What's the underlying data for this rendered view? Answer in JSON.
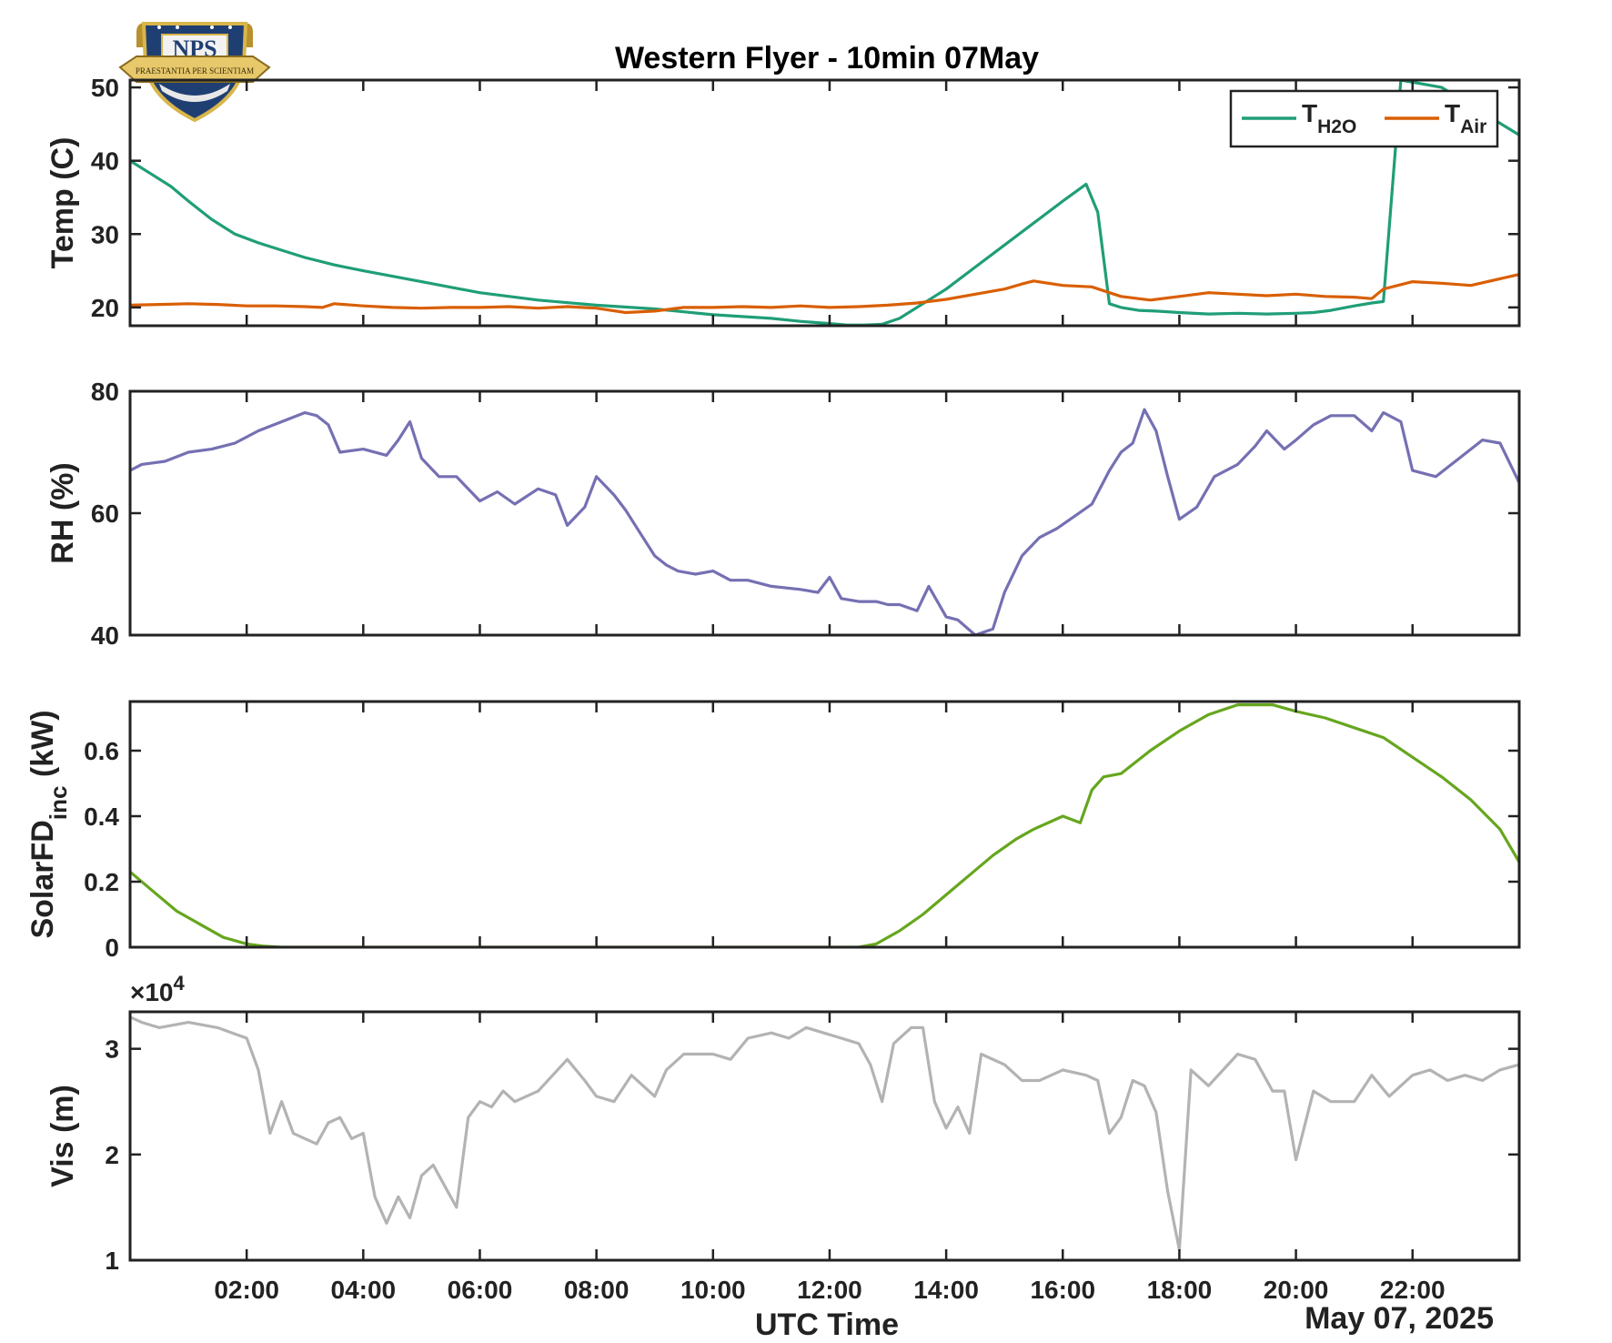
{
  "logo": {
    "text": "NPS",
    "motto": "PRAESTANTIA PER SCIENTIAM",
    "colors": {
      "shield": "#1f3f73",
      "gold": "#d8b64a"
    }
  },
  "chart_data": {
    "title": "Western Flyer - 10min 07May",
    "xlabel": "UTC Time",
    "date_label": "May 07, 2025",
    "x_range_hours": [
      0,
      23.83
    ],
    "xtick_hours": [
      2,
      4,
      6,
      8,
      10,
      12,
      14,
      16,
      18,
      20,
      22
    ],
    "xtick_labels": [
      "02:00",
      "04:00",
      "06:00",
      "08:00",
      "10:00",
      "12:00",
      "14:00",
      "16:00",
      "18:00",
      "20:00",
      "22:00"
    ],
    "panels": [
      {
        "type": "line",
        "ylabel": "Temp (C)",
        "ylim": [
          17.5,
          51
        ],
        "yticks": [
          20,
          30,
          40,
          50
        ],
        "legend": {
          "position": "top-right",
          "entries": [
            {
              "main": "T",
              "sub": "H2O"
            },
            {
              "main": "T",
              "sub": "Air"
            }
          ]
        },
        "series": [
          {
            "name": "TH2O",
            "color": "#1f9e77",
            "x": [
              0,
              0.3,
              0.7,
              1,
              1.4,
              1.8,
              2.2,
              2.6,
              3,
              3.5,
              4,
              5,
              6,
              7,
              8,
              9,
              10,
              11,
              11.5,
              12,
              12.3,
              12.6,
              12.9,
              13.2,
              13.6,
              14,
              14.5,
              15,
              15.5,
              16,
              16.4,
              16.6,
              16.8,
              17,
              17.3,
              17.6,
              18,
              18.5,
              19,
              19.5,
              20,
              20.3,
              20.6,
              21,
              21.3,
              21.5,
              21.8,
              22.5,
              23.83
            ],
            "values": [
              40,
              38.5,
              36.5,
              34.5,
              32,
              30,
              28.8,
              27.8,
              26.8,
              25.8,
              25,
              23.5,
              22,
              21,
              20.3,
              19.8,
              19,
              18.5,
              18.1,
              17.8,
              17.6,
              17.6,
              17.7,
              18.5,
              20.5,
              22.5,
              25.5,
              28.5,
              31.5,
              34.5,
              36.8,
              33,
              20.5,
              20,
              19.6,
              19.5,
              19.3,
              19.1,
              19.2,
              19.1,
              19.2,
              19.3,
              19.6,
              20.2,
              20.6,
              20.8,
              51,
              50,
              43.5
            ]
          },
          {
            "name": "TAir",
            "color": "#d95f02",
            "x": [
              0,
              0.5,
              1,
              1.5,
              2,
              2.5,
              3,
              3.3,
              3.5,
              4,
              4.5,
              5,
              5.5,
              6,
              6.5,
              7,
              7.5,
              8,
              8.5,
              9,
              9.5,
              10,
              10.5,
              11,
              11.5,
              12,
              12.5,
              13,
              13.5,
              14,
              14.5,
              15,
              15.3,
              15.5,
              16,
              16.5,
              17,
              17.5,
              18,
              18.5,
              19,
              19.5,
              20,
              20.5,
              21,
              21.3,
              21.5,
              22,
              22.5,
              23,
              23.83
            ],
            "values": [
              20.3,
              20.4,
              20.5,
              20.4,
              20.2,
              20.2,
              20.1,
              20,
              20.5,
              20.2,
              20,
              19.9,
              20,
              20,
              20.1,
              19.9,
              20.1,
              19.9,
              19.3,
              19.5,
              20,
              20,
              20.1,
              20,
              20.2,
              20,
              20.1,
              20.3,
              20.6,
              21.1,
              21.8,
              22.5,
              23.2,
              23.6,
              23,
              22.8,
              21.5,
              21,
              21.5,
              22,
              21.8,
              21.6,
              21.8,
              21.5,
              21.4,
              21.2,
              22.5,
              23.5,
              23.3,
              23,
              24.5
            ]
          }
        ]
      },
      {
        "type": "line",
        "ylabel": "RH (%)",
        "ylim": [
          40,
          80
        ],
        "yticks": [
          40,
          60,
          80
        ],
        "series": [
          {
            "name": "",
            "color": "#7570b3",
            "x": [
              0,
              0.2,
              0.6,
              1,
              1.4,
              1.8,
              2.2,
              2.6,
              3,
              3.2,
              3.4,
              3.6,
              4,
              4.4,
              4.6,
              4.8,
              5,
              5.3,
              5.6,
              6,
              6.3,
              6.6,
              7,
              7.3,
              7.5,
              7.8,
              8,
              8.3,
              8.5,
              8.7,
              9,
              9.2,
              9.4,
              9.7,
              10,
              10.3,
              10.6,
              11,
              11.5,
              11.8,
              12,
              12.2,
              12.5,
              12.8,
              13,
              13.2,
              13.5,
              13.7,
              14,
              14.2,
              14.5,
              14.8,
              15,
              15.3,
              15.6,
              15.9,
              16.2,
              16.5,
              16.8,
              17,
              17.2,
              17.4,
              17.6,
              17.8,
              18,
              18.3,
              18.6,
              19,
              19.3,
              19.5,
              19.8,
              20,
              20.3,
              20.6,
              21,
              21.3,
              21.5,
              21.8,
              22,
              22.4,
              22.8,
              23.2,
              23.5,
              23.83
            ],
            "values": [
              67,
              68,
              68.5,
              70,
              70.5,
              71.5,
              73.5,
              75,
              76.5,
              76,
              74.5,
              70,
              70.5,
              69.5,
              72,
              75,
              69,
              66,
              66,
              62,
              63.5,
              61.5,
              64,
              63,
              58,
              61,
              66,
              63,
              60.5,
              57.5,
              53,
              51.5,
              50.5,
              50,
              50.5,
              49,
              49,
              48,
              47.5,
              47,
              49.5,
              46,
              45.5,
              45.5,
              45,
              45,
              44,
              48,
              43,
              42.5,
              40,
              41,
              47,
              53,
              56,
              57.5,
              59.5,
              61.5,
              67,
              70,
              71.5,
              77,
              73.5,
              66,
              59,
              61,
              66,
              68,
              71,
              73.5,
              70.5,
              72,
              74.5,
              76,
              76,
              73.5,
              76.5,
              75,
              67,
              66,
              69,
              72,
              71.5,
              65
            ]
          }
        ]
      },
      {
        "type": "line",
        "ylabel": "SolarFD",
        "ylabel_sub": "inc",
        "ylabel_unit": " (kW)",
        "ylim": [
          0,
          0.75
        ],
        "yticks": [
          0,
          0.2,
          0.4,
          0.6
        ],
        "ytick_labels": [
          "0",
          "0.2",
          "0.4",
          "0.6"
        ],
        "series": [
          {
            "name": "",
            "color": "#66a61e",
            "x": [
              0,
              0.4,
              0.8,
              1.2,
              1.6,
              2,
              2.3,
              2.6,
              12.5,
              12.8,
              13.2,
              13.6,
              14,
              14.4,
              14.8,
              15.2,
              15.5,
              16,
              16.3,
              16.5,
              16.7,
              17,
              17.5,
              18,
              18.5,
              19,
              19.3,
              19.6,
              20,
              20.5,
              21,
              21.5,
              22,
              22.5,
              23,
              23.5,
              23.83
            ],
            "values": [
              0.23,
              0.17,
              0.11,
              0.07,
              0.03,
              0.01,
              0.003,
              0,
              0,
              0.01,
              0.05,
              0.1,
              0.16,
              0.22,
              0.28,
              0.33,
              0.36,
              0.4,
              0.38,
              0.48,
              0.52,
              0.53,
              0.6,
              0.66,
              0.71,
              0.74,
              0.74,
              0.74,
              0.72,
              0.7,
              0.67,
              0.64,
              0.58,
              0.52,
              0.45,
              0.36,
              0.26
            ]
          }
        ]
      },
      {
        "type": "line",
        "ylabel": "Vis (m)",
        "exponent_label": "×10",
        "exponent_power": "4",
        "ylim": [
          1,
          3.35
        ],
        "yticks": [
          1,
          2,
          3
        ],
        "series": [
          {
            "name": "",
            "color": "#b3b3b3",
            "x": [
              0,
              0.2,
              0.5,
              1,
              1.5,
              2,
              2.2,
              2.4,
              2.6,
              2.8,
              3,
              3.2,
              3.4,
              3.6,
              3.8,
              4,
              4.2,
              4.4,
              4.6,
              4.8,
              5,
              5.2,
              5.4,
              5.6,
              5.8,
              6,
              6.2,
              6.4,
              6.6,
              7,
              7.5,
              7.8,
              8,
              8.3,
              8.6,
              9,
              9.2,
              9.5,
              10,
              10.3,
              10.6,
              11,
              11.3,
              11.6,
              11.9,
              12.2,
              12.5,
              12.7,
              12.9,
              13.1,
              13.4,
              13.6,
              13.8,
              14,
              14.2,
              14.4,
              14.6,
              15,
              15.3,
              15.6,
              16,
              16.4,
              16.6,
              16.8,
              17,
              17.2,
              17.4,
              17.6,
              17.8,
              18,
              18.2,
              18.5,
              19,
              19.3,
              19.6,
              19.8,
              20,
              20.3,
              20.6,
              20.8,
              21,
              21.3,
              21.6,
              22,
              22.3,
              22.6,
              22.9,
              23.2,
              23.5,
              23.83
            ],
            "values": [
              3.3,
              3.25,
              3.2,
              3.25,
              3.2,
              3.1,
              2.8,
              2.2,
              2.5,
              2.2,
              2.15,
              2.1,
              2.3,
              2.35,
              2.15,
              2.2,
              1.6,
              1.35,
              1.6,
              1.4,
              1.8,
              1.9,
              1.7,
              1.5,
              2.35,
              2.5,
              2.45,
              2.6,
              2.5,
              2.6,
              2.9,
              2.7,
              2.55,
              2.5,
              2.75,
              2.55,
              2.8,
              2.95,
              2.95,
              2.9,
              3.1,
              3.15,
              3.1,
              3.2,
              3.15,
              3.1,
              3.05,
              2.85,
              2.5,
              3.05,
              3.2,
              3.2,
              2.5,
              2.25,
              2.45,
              2.2,
              2.95,
              2.85,
              2.7,
              2.7,
              2.8,
              2.75,
              2.7,
              2.2,
              2.35,
              2.7,
              2.65,
              2.4,
              1.65,
              1.1,
              2.8,
              2.65,
              2.95,
              2.9,
              2.6,
              2.6,
              1.95,
              2.6,
              2.5,
              2.5,
              2.5,
              2.75,
              2.55,
              2.75,
              2.8,
              2.7,
              2.75,
              2.7,
              2.8,
              2.85
            ]
          }
        ]
      }
    ]
  }
}
